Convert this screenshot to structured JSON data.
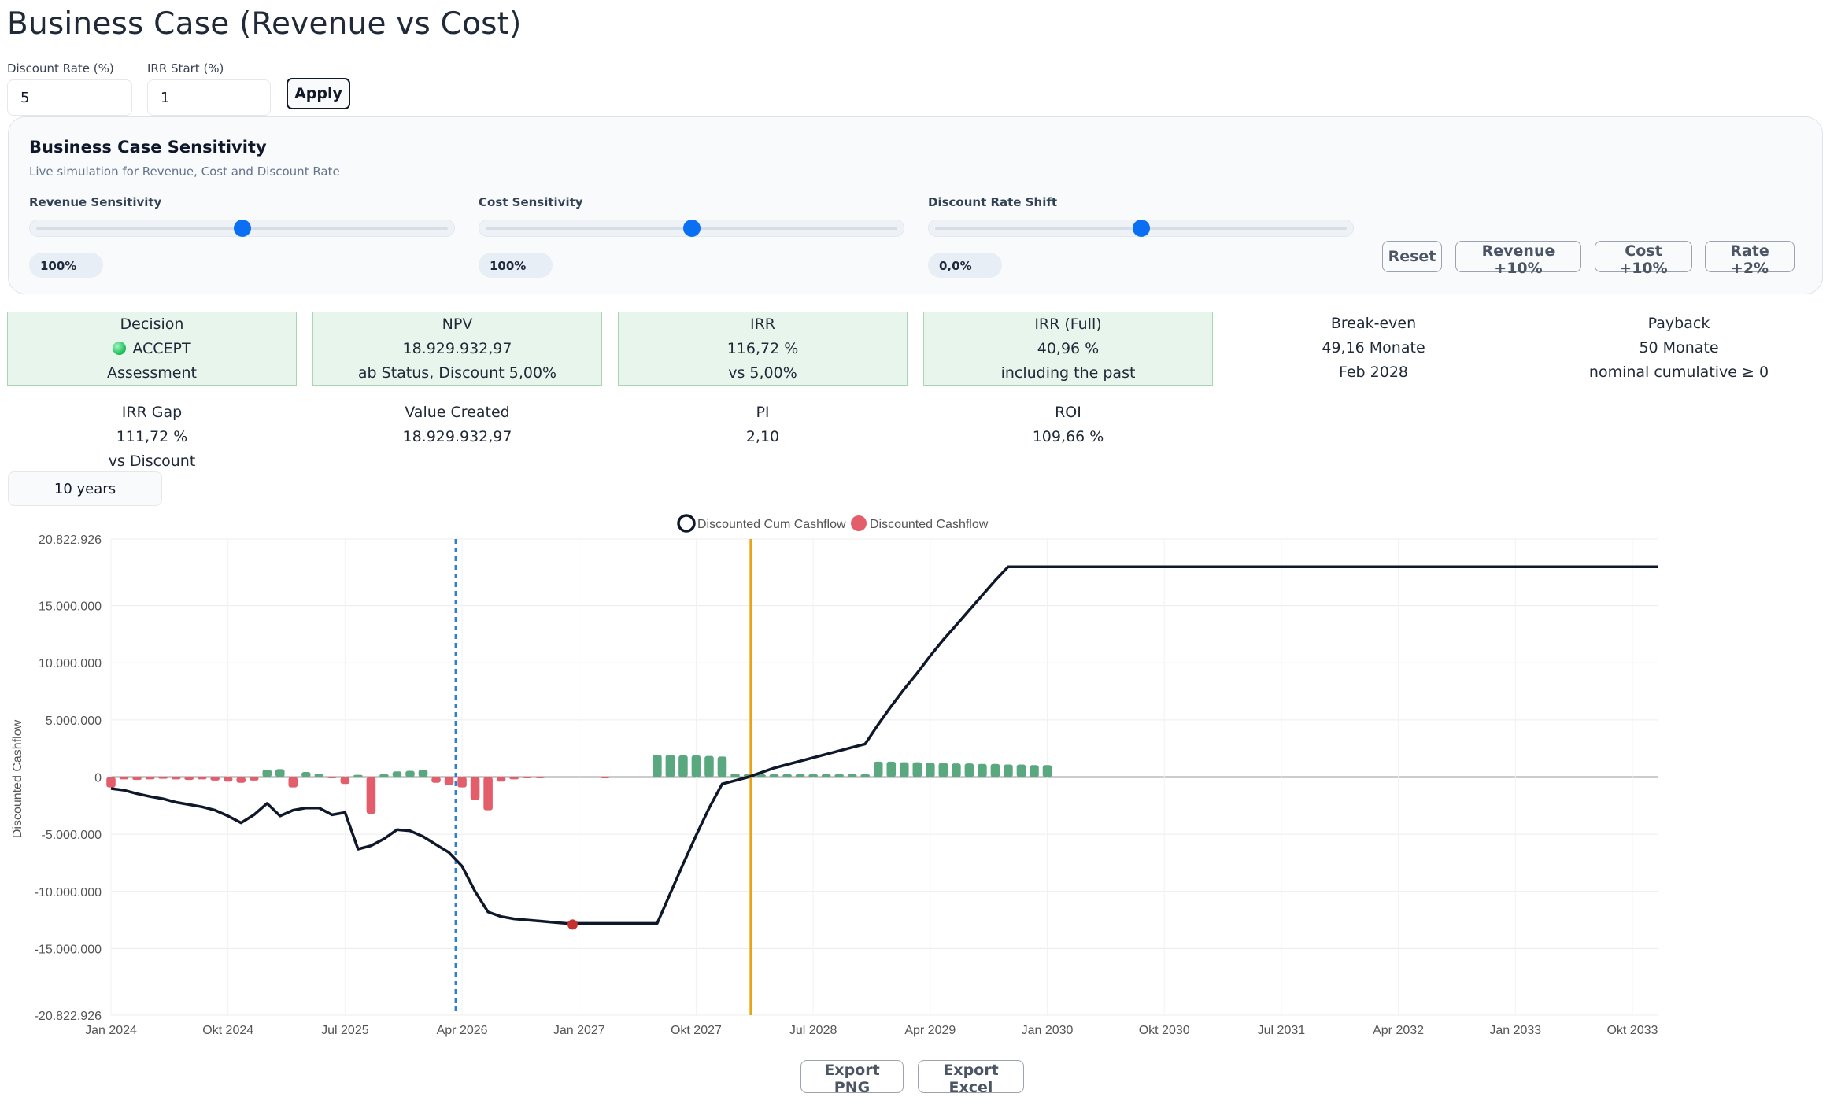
{
  "page": {
    "title": "Business Case (Revenue vs Cost)"
  },
  "controls": {
    "discount_label": "Discount Rate (%)",
    "discount_value": "5",
    "irr_label": "IRR Start (%)",
    "irr_value": "1",
    "apply_label": "Apply"
  },
  "sensitivity": {
    "title": "Business Case Sensitivity",
    "subtitle": "Live simulation for Revenue, Cost and Discount Rate",
    "sliders": [
      {
        "label": "Revenue Sensitivity",
        "value": "100%",
        "position": 0.5
      },
      {
        "label": "Cost Sensitivity",
        "value": "100%",
        "position": 0.5
      },
      {
        "label": "Discount Rate Shift",
        "value": "0,0%",
        "position": 0.5
      }
    ],
    "buttons": {
      "reset": "Reset",
      "revenue": "Revenue +10%",
      "cost": "Cost +10%",
      "rate": "Rate +2%"
    }
  },
  "kpis": {
    "decision": {
      "label": "Decision",
      "value": "ACCEPT",
      "sub": "Assessment"
    },
    "npv": {
      "label": "NPV",
      "value": "18.929.932,97",
      "sub": "ab Status, Discount 5,00%"
    },
    "irr": {
      "label": "IRR",
      "value": "116,72 %",
      "sub": "vs 5,00%"
    },
    "irr_full": {
      "label": "IRR (Full)",
      "value": "40,96 %",
      "sub": "including the past"
    },
    "breakeven": {
      "label": "Break-even",
      "value": "49,16 Monate",
      "sub": "Feb 2028"
    },
    "payback": {
      "label": "Payback",
      "value": "50 Monate",
      "sub": "nominal cumulative ≥ 0"
    },
    "irr_gap": {
      "label": "IRR Gap",
      "value": "111,72 %",
      "sub": "vs Discount"
    },
    "value_created": {
      "label": "Value Created",
      "value": "18.929.932,97"
    },
    "pi": {
      "label": "PI",
      "value": "2,10"
    },
    "roi": {
      "label": "ROI",
      "value": "109,66 %"
    }
  },
  "range": {
    "label": "10 years"
  },
  "chart_data": {
    "type": "bar+line",
    "ylabel": "Discounted Cashflow",
    "ylim": [
      -20822926,
      20822926
    ],
    "y_ticks": [
      "20.822.926",
      "15.000.000",
      "10.000.000",
      "5.000.000",
      "0",
      "-5.000.000",
      "-10.000.000",
      "-15.000.000",
      "-20.822.926"
    ],
    "y_tick_values": [
      20822926,
      15000000,
      10000000,
      5000000,
      0,
      -5000000,
      -10000000,
      -15000000,
      -20822926
    ],
    "x_ticks": [
      "Jan 2024",
      "Okt 2024",
      "Jul 2025",
      "Apr 2026",
      "Jan 2027",
      "Okt 2027",
      "Jul 2028",
      "Apr 2029",
      "Jan 2030",
      "Okt 2030",
      "Jul 2031",
      "Apr 2032",
      "Jan 2033",
      "Okt 2033"
    ],
    "x_tick_months": [
      0,
      9,
      18,
      27,
      36,
      45,
      54,
      63,
      72,
      81,
      90,
      99,
      108,
      117
    ],
    "legend": [
      {
        "name": "Discounted Cum Cashflow",
        "color": "#0f172a"
      },
      {
        "name": "Discounted Cashflow",
        "color": "#e35d6a"
      }
    ],
    "vlines": [
      {
        "month": 26.5,
        "color": "#2f7fd1",
        "style": "dashed"
      },
      {
        "month": 49.2,
        "color": "#e8a317",
        "style": "solid"
      }
    ],
    "marker": {
      "month": 35.5,
      "value": -12900000,
      "color": "#c53030"
    },
    "bar_months": [
      0,
      1,
      2,
      3,
      4,
      5,
      6,
      7,
      8,
      9,
      10,
      11,
      12,
      13,
      14,
      15,
      16,
      17,
      18,
      19,
      20,
      21,
      22,
      23,
      24,
      25,
      26,
      27,
      28,
      29,
      30,
      31,
      32,
      33,
      38,
      42,
      43,
      44,
      45,
      46,
      47,
      48,
      49,
      50,
      51,
      52,
      53,
      54,
      55,
      56,
      57,
      58,
      59,
      60,
      61,
      62,
      63,
      64,
      65,
      66,
      67,
      68,
      69,
      70,
      71,
      72
    ],
    "bar_values": [
      -900000,
      -200000,
      -250000,
      -200000,
      -150000,
      -200000,
      -250000,
      -200000,
      -300000,
      -400000,
      -500000,
      -300000,
      650000,
      700000,
      -900000,
      450000,
      300000,
      -100000,
      -600000,
      200000,
      -3200000,
      250000,
      500000,
      550000,
      650000,
      -500000,
      -700000,
      -900000,
      -2000000,
      -2900000,
      -400000,
      -200000,
      -100000,
      -50000,
      -50000,
      1950000,
      1950000,
      1900000,
      1900000,
      1850000,
      1800000,
      300000,
      250000,
      250000,
      250000,
      250000,
      250000,
      250000,
      250000,
      250000,
      250000,
      250000,
      1350000,
      1350000,
      1300000,
      1300000,
      1250000,
      1250000,
      1200000,
      1200000,
      1150000,
      1150000,
      1100000,
      1100000,
      1050000,
      1050000
    ],
    "cum_months": [
      0,
      1,
      2,
      3,
      4,
      5,
      6,
      7,
      8,
      9,
      10,
      11,
      12,
      13,
      14,
      15,
      16,
      17,
      18,
      19,
      20,
      21,
      22,
      23,
      24,
      25,
      26,
      27,
      28,
      29,
      30,
      31,
      32,
      33,
      34,
      35,
      36,
      37,
      38,
      39,
      40,
      41,
      42,
      43,
      44,
      45,
      46,
      47,
      48,
      49,
      50,
      51,
      52,
      53,
      54,
      55,
      56,
      57,
      58,
      59,
      60,
      61,
      62,
      63,
      64,
      65,
      66,
      67,
      68,
      69,
      70,
      71,
      72,
      73,
      74,
      75,
      80,
      90,
      100,
      110,
      119
    ],
    "cum_values": [
      -1000000,
      -1150000,
      -1450000,
      -1700000,
      -1900000,
      -2200000,
      -2400000,
      -2600000,
      -2900000,
      -3400000,
      -4000000,
      -3300000,
      -2300000,
      -3400000,
      -2900000,
      -2700000,
      -2700000,
      -3300000,
      -3100000,
      -6300000,
      -6000000,
      -5400000,
      -4600000,
      -4700000,
      -5200000,
      -5900000,
      -6600000,
      -7800000,
      -10000000,
      -11800000,
      -12200000,
      -12400000,
      -12500000,
      -12600000,
      -12700000,
      -12800000,
      -12800000,
      -12800000,
      -12800000,
      -12800000,
      -12800000,
      -12800000,
      -12800000,
      -10200000,
      -7600000,
      -5100000,
      -2700000,
      -600000,
      -300000,
      0,
      400000,
      800000,
      1100000,
      1400000,
      1700000,
      2000000,
      2300000,
      2600000,
      2900000,
      4600000,
      6200000,
      7700000,
      9100000,
      10600000,
      12000000,
      13300000,
      14600000,
      15900000,
      17200000,
      18400000,
      18400000,
      18400000,
      18400000,
      18400000,
      18400000,
      18400000,
      18400000,
      18400000,
      18400000,
      18400000,
      18400000
    ]
  },
  "exports": {
    "png": "Export PNG",
    "excel": "Export Excel"
  }
}
